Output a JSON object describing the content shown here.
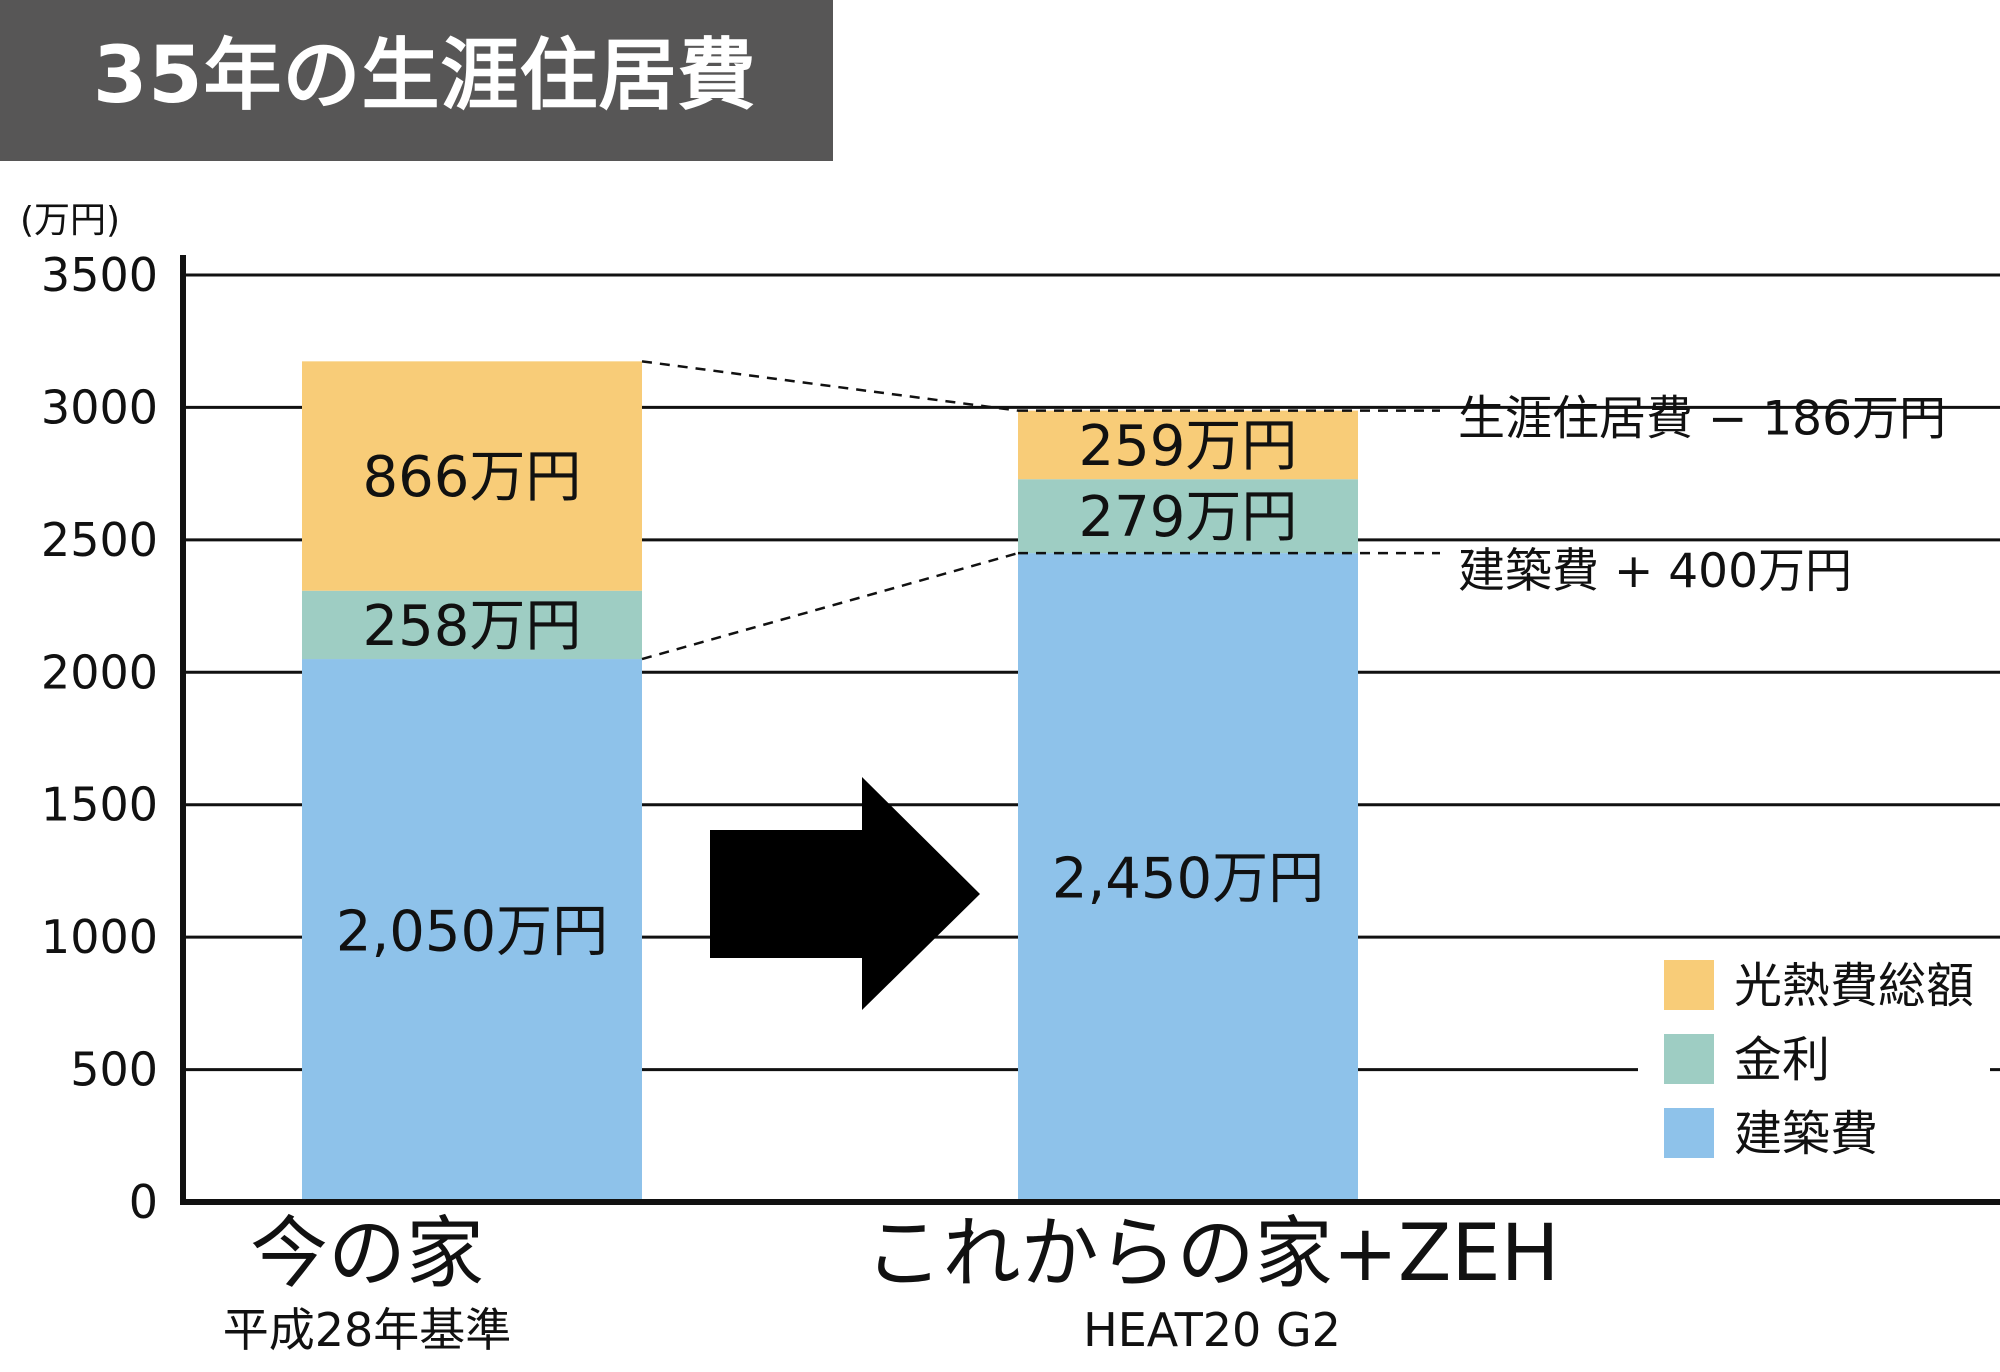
{
  "title": "35年の生涯住居費",
  "colors": {
    "title_bg": "#575656",
    "construction": "#8EC2EA",
    "interest": "#9ECDC3",
    "utilities": "#F8CC78",
    "arrow": "#000000"
  },
  "chart_data": {
    "type": "bar",
    "stacked": true,
    "title": "35年の生涯住居費",
    "ylabel": "(万円)",
    "ylim": [
      0,
      3500
    ],
    "yticks": [
      0,
      500,
      1000,
      1500,
      2000,
      2500,
      3000,
      3500
    ],
    "grid": true,
    "legend_position": "bottom-right",
    "categories": [
      "今の家",
      "これからの家+ZEH"
    ],
    "category_sublabels": [
      "平成28年基準",
      "HEAT20 G2"
    ],
    "series": [
      {
        "name": "建築費",
        "values": [
          2050,
          2450
        ],
        "labels": [
          "2,050万円",
          "2,450万円"
        ],
        "color": "#8EC2EA"
      },
      {
        "name": "金利",
        "values": [
          258,
          279
        ],
        "labels": [
          "258万円",
          "279万円"
        ],
        "color": "#9ECDC3"
      },
      {
        "name": "光熱費総額",
        "values": [
          866,
          259
        ],
        "labels": [
          "866万円",
          "259万円"
        ],
        "color": "#F8CC78"
      }
    ],
    "legend_order": [
      "光熱費総額",
      "金利",
      "建築費"
    ],
    "annotations": [
      {
        "text": "生涯住居費 − 186万円"
      },
      {
        "text": "建築費 + 400万円"
      }
    ]
  }
}
